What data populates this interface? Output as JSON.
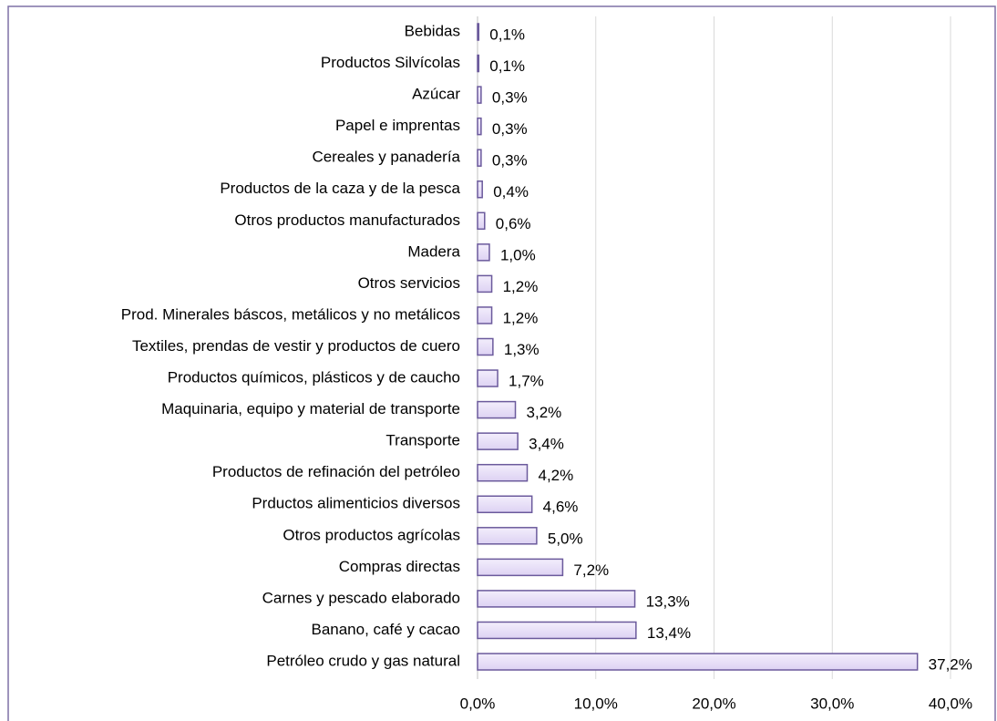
{
  "chart_data": {
    "type": "barh",
    "categories": [
      "Bebidas",
      "Productos Silvícolas",
      "Azúcar",
      "Papel e imprentas",
      "Cereales y panadería",
      "Productos de la caza y de la pesca",
      "Otros productos manufacturados",
      "Madera",
      "Otros servicios",
      "Prod. Minerales báscos, metálicos y no metálicos",
      "Textiles, prendas de vestir y productos de cuero",
      "Productos químicos, plásticos y de caucho",
      "Maquinaria, equipo y material de transporte",
      "Transporte",
      "Productos de refinación del petróleo",
      "Prductos alimenticios diversos",
      "Otros productos agrícolas",
      "Compras directas",
      "Carnes y pescado elaborado",
      "Banano, café y cacao",
      "Petróleo crudo y gas natural"
    ],
    "values": [
      0.1,
      0.1,
      0.3,
      0.3,
      0.3,
      0.4,
      0.6,
      1.0,
      1.2,
      1.2,
      1.3,
      1.7,
      3.2,
      3.4,
      4.2,
      4.6,
      5.0,
      7.2,
      13.3,
      13.4,
      37.2
    ],
    "value_labels": [
      "0,1%",
      "0,1%",
      "0,3%",
      "0,3%",
      "0,3%",
      "0,4%",
      "0,6%",
      "1,0%",
      "1,2%",
      "1,2%",
      "1,3%",
      "1,7%",
      "3,2%",
      "3,4%",
      "4,2%",
      "4,6%",
      "5,0%",
      "7,2%",
      "13,3%",
      "13,4%",
      "37,2%"
    ],
    "color": "#ddd2f3",
    "xlim": [
      0,
      40
    ],
    "xticks": [
      {
        "value": 0,
        "label": "0,0%"
      },
      {
        "value": 10,
        "label": "10,0%"
      },
      {
        "value": 20,
        "label": "20,0%"
      },
      {
        "value": 30,
        "label": "30,0%"
      },
      {
        "value": 40,
        "label": "40,0%"
      }
    ],
    "grid": true
  }
}
